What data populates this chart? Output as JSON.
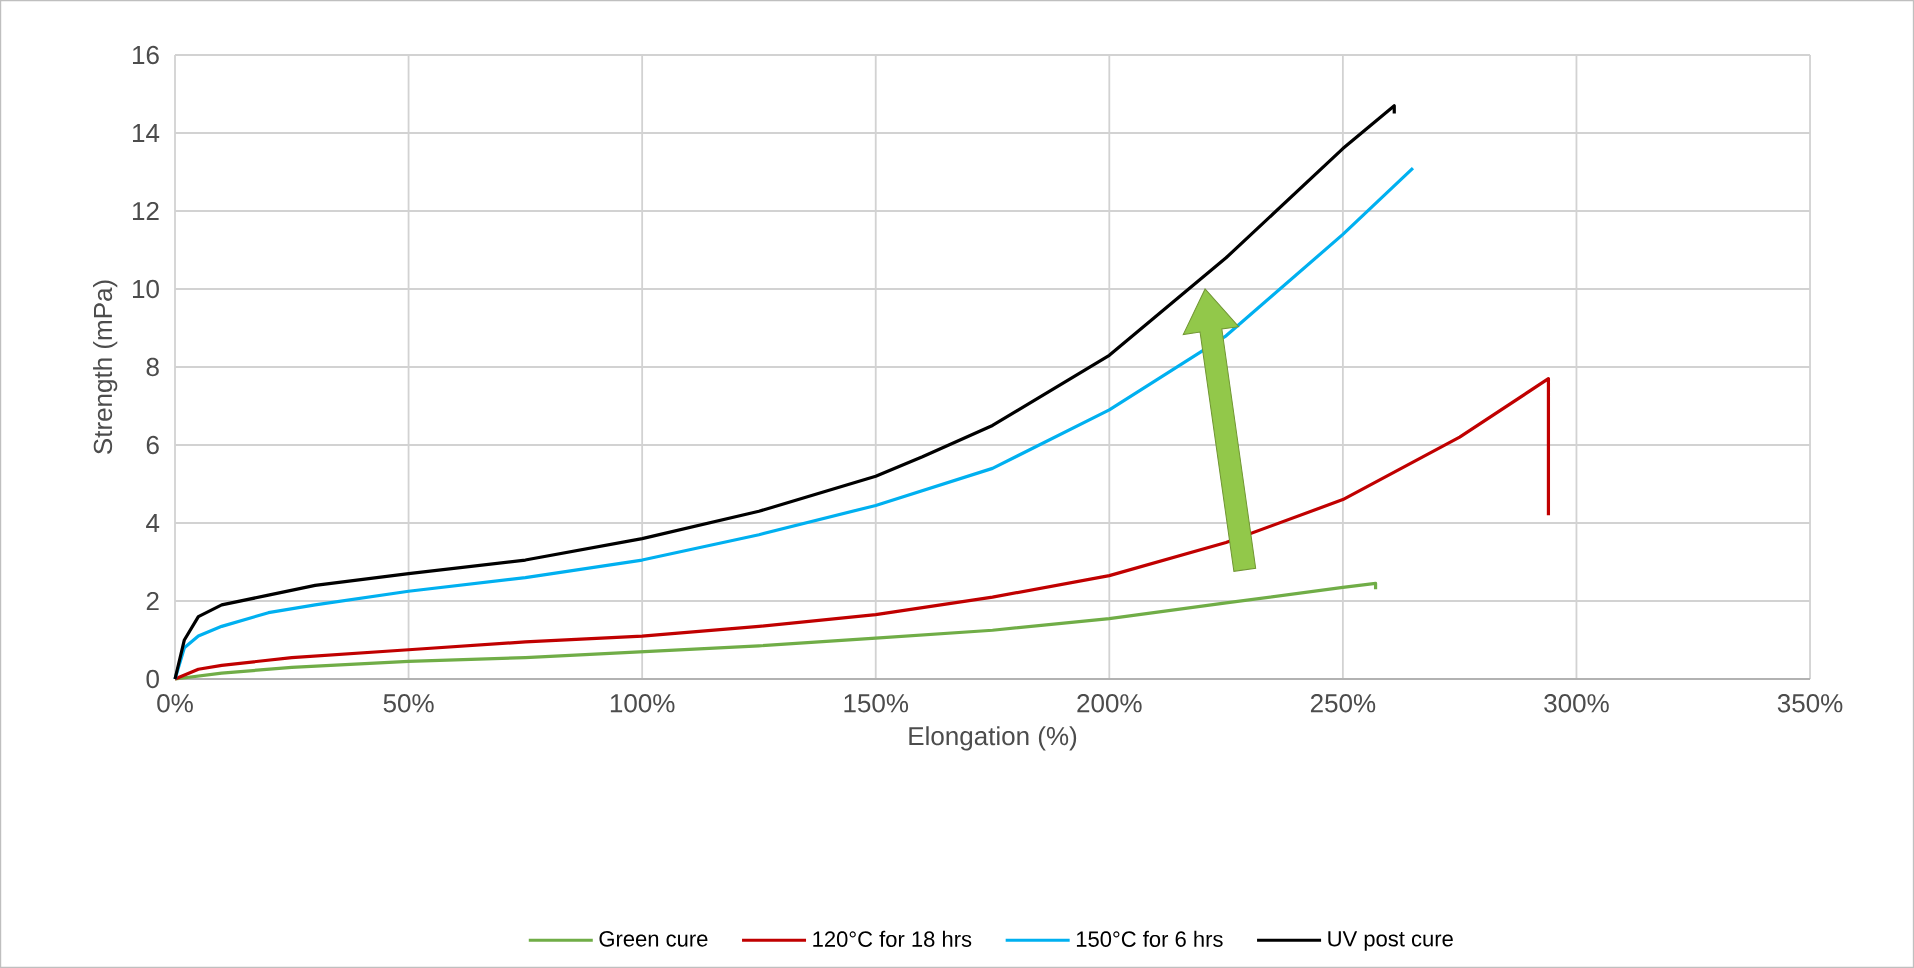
{
  "chart_data": {
    "type": "line",
    "xlabel": "Elongation (%)",
    "ylabel": "Strength (mPa)",
    "xlim": [
      0,
      350
    ],
    "ylim": [
      0,
      16
    ],
    "xticks": [
      {
        "value": 0,
        "label": "0%"
      },
      {
        "value": 50,
        "label": "50%"
      },
      {
        "value": 100,
        "label": "100%"
      },
      {
        "value": 150,
        "label": "150%"
      },
      {
        "value": 200,
        "label": "200%"
      },
      {
        "value": 250,
        "label": "250%"
      },
      {
        "value": 300,
        "label": "300%"
      },
      {
        "value": 350,
        "label": "350%"
      }
    ],
    "yticks": [
      0,
      2,
      4,
      6,
      8,
      10,
      12,
      14,
      16
    ],
    "grid": true,
    "legend": "bottom",
    "marker": "none",
    "line_style": "solid",
    "series": [
      {
        "name": "Green cure",
        "color": "#70ad47",
        "x": [
          0,
          10,
          25,
          50,
          75,
          100,
          125,
          150,
          175,
          200,
          225,
          250,
          257,
          257
        ],
        "values": [
          0,
          0.15,
          0.3,
          0.45,
          0.55,
          0.7,
          0.85,
          1.05,
          1.25,
          1.55,
          1.95,
          2.35,
          2.45,
          2.3
        ]
      },
      {
        "name": "120°C for 18 hrs",
        "color": "#c00000",
        "x": [
          0,
          5,
          10,
          25,
          50,
          75,
          100,
          125,
          150,
          175,
          200,
          225,
          250,
          275,
          294,
          294
        ],
        "values": [
          0,
          0.25,
          0.35,
          0.55,
          0.75,
          0.95,
          1.1,
          1.35,
          1.65,
          2.1,
          2.65,
          3.5,
          4.6,
          6.2,
          7.7,
          4.2
        ]
      },
      {
        "name": "150°C for 6 hrs",
        "color": "#00b0f0",
        "x": [
          0,
          2,
          5,
          10,
          20,
          30,
          50,
          75,
          100,
          125,
          150,
          175,
          200,
          225,
          250,
          265
        ],
        "values": [
          0,
          0.8,
          1.1,
          1.35,
          1.7,
          1.9,
          2.25,
          2.6,
          3.05,
          3.7,
          4.45,
          5.4,
          6.9,
          8.8,
          11.4,
          13.1
        ]
      },
      {
        "name": "UV post cure",
        "color": "#000000",
        "x": [
          0,
          2,
          5,
          10,
          20,
          30,
          50,
          75,
          100,
          125,
          150,
          160,
          175,
          200,
          225,
          250,
          261,
          261
        ],
        "values": [
          0,
          1.0,
          1.6,
          1.9,
          2.15,
          2.4,
          2.7,
          3.05,
          3.6,
          4.3,
          5.2,
          5.7,
          6.5,
          8.3,
          10.8,
          13.6,
          14.7,
          14.5
        ]
      }
    ]
  }
}
